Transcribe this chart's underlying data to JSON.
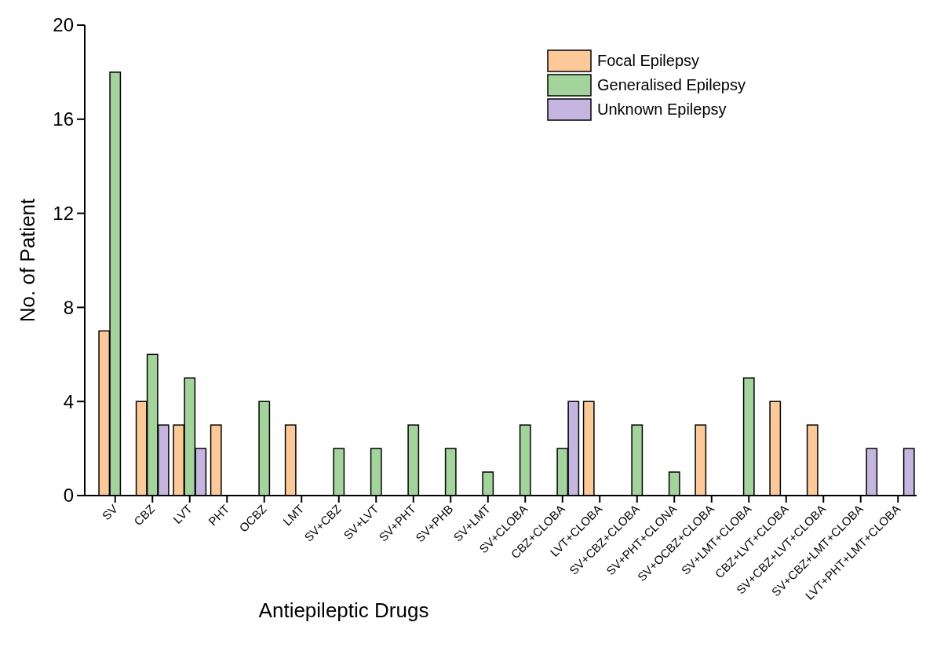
{
  "chart_data": {
    "type": "bar",
    "xlabel": "Antiepileptic Drugs",
    "ylabel": "No. of Patient",
    "categories": [
      "SV",
      "CBZ",
      "LVT",
      "PHT",
      "OCBZ",
      "LMT",
      "SV+CBZ",
      "SV+LVT",
      "SV+PHT",
      "SV+PHB",
      "SV+LMT",
      "SV+CLOBA",
      "CBZ+CLOBA",
      "LVT+CLOBA",
      "SV+CBZ+CLOBA",
      "SV+PHT+CLONA",
      "SV+OCBZ+CLOBA",
      "SV+LMT+CLOBA",
      "CBZ+LVT+CLOBA",
      "SV+CBZ+LVT+CLOBA",
      "SV+CBZ+LMT+CLOBA",
      "LVT+PHT+LMT+CLOBA"
    ],
    "series": [
      {
        "name": "Focal Epilepsy",
        "color": "#fdc998",
        "values": [
          7,
          4,
          3,
          3,
          0,
          3,
          0,
          0,
          0,
          0,
          0,
          0,
          0,
          4,
          0,
          0,
          3,
          0,
          4,
          3,
          0,
          0
        ]
      },
      {
        "name": "Generalised Epilepsy",
        "color": "#a2d49c",
        "values": [
          18,
          6,
          5,
          0,
          4,
          0,
          2,
          2,
          3,
          2,
          1,
          3,
          2,
          0,
          3,
          1,
          0,
          5,
          0,
          0,
          0,
          0
        ]
      },
      {
        "name": "Unknown Epilepsy",
        "color": "#c5b5df",
        "values": [
          0,
          3,
          2,
          0,
          0,
          0,
          0,
          0,
          0,
          0,
          0,
          0,
          4,
          0,
          0,
          0,
          0,
          0,
          0,
          0,
          2,
          2
        ]
      }
    ],
    "ylim": [
      0,
      20
    ],
    "yticks": [
      0,
      4,
      8,
      12,
      16,
      20
    ],
    "grid": false,
    "legend": "top right"
  }
}
